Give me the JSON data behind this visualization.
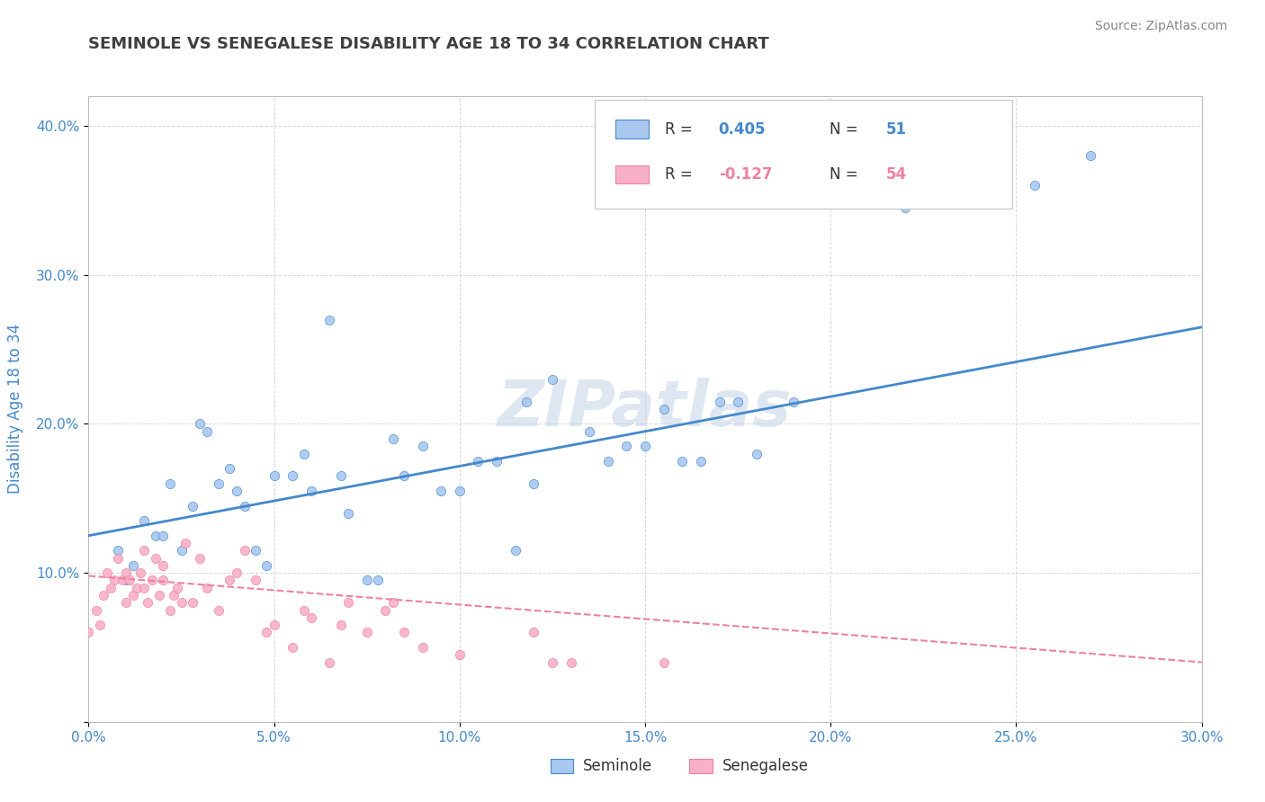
{
  "title": "SEMINOLE VS SENEGALESE DISABILITY AGE 18 TO 34 CORRELATION CHART",
  "source_text": "Source: ZipAtlas.com",
  "ylabel": "Disability Age 18 to 34",
  "xlim": [
    0.0,
    0.3
  ],
  "ylim": [
    0.0,
    0.42
  ],
  "xticks": [
    0.0,
    0.05,
    0.1,
    0.15,
    0.2,
    0.25,
    0.3
  ],
  "yticks": [
    0.0,
    0.1,
    0.2,
    0.3,
    0.4
  ],
  "xtick_labels": [
    "0.0%",
    "5.0%",
    "10.0%",
    "15.0%",
    "20.0%",
    "25.0%",
    "30.0%"
  ],
  "ytick_labels": [
    "",
    "10.0%",
    "20.0%",
    "30.0%",
    "40.0%"
  ],
  "seminole_color": "#a8c8f0",
  "senegalese_color": "#f8b0c8",
  "trend1_color": "#4488cc",
  "trend2_color": "#f080a0",
  "watermark": "ZIPatlas",
  "watermark_color": "#c8d8e8",
  "background_color": "#ffffff",
  "grid_color": "#cccccc",
  "title_color": "#404040",
  "tick_color": "#4488cc",
  "seminole_points": [
    [
      0.008,
      0.115
    ],
    [
      0.01,
      0.095
    ],
    [
      0.012,
      0.105
    ],
    [
      0.015,
      0.135
    ],
    [
      0.018,
      0.125
    ],
    [
      0.02,
      0.125
    ],
    [
      0.022,
      0.16
    ],
    [
      0.025,
      0.115
    ],
    [
      0.028,
      0.145
    ],
    [
      0.03,
      0.2
    ],
    [
      0.032,
      0.195
    ],
    [
      0.035,
      0.16
    ],
    [
      0.038,
      0.17
    ],
    [
      0.04,
      0.155
    ],
    [
      0.042,
      0.145
    ],
    [
      0.045,
      0.115
    ],
    [
      0.048,
      0.105
    ],
    [
      0.05,
      0.165
    ],
    [
      0.055,
      0.165
    ],
    [
      0.058,
      0.18
    ],
    [
      0.06,
      0.155
    ],
    [
      0.065,
      0.27
    ],
    [
      0.068,
      0.165
    ],
    [
      0.07,
      0.14
    ],
    [
      0.075,
      0.095
    ],
    [
      0.078,
      0.095
    ],
    [
      0.082,
      0.19
    ],
    [
      0.085,
      0.165
    ],
    [
      0.09,
      0.185
    ],
    [
      0.095,
      0.155
    ],
    [
      0.1,
      0.155
    ],
    [
      0.105,
      0.175
    ],
    [
      0.11,
      0.175
    ],
    [
      0.115,
      0.115
    ],
    [
      0.118,
      0.215
    ],
    [
      0.12,
      0.16
    ],
    [
      0.125,
      0.23
    ],
    [
      0.135,
      0.195
    ],
    [
      0.14,
      0.175
    ],
    [
      0.145,
      0.185
    ],
    [
      0.15,
      0.185
    ],
    [
      0.155,
      0.21
    ],
    [
      0.16,
      0.175
    ],
    [
      0.165,
      0.175
    ],
    [
      0.17,
      0.215
    ],
    [
      0.175,
      0.215
    ],
    [
      0.18,
      0.18
    ],
    [
      0.19,
      0.215
    ],
    [
      0.22,
      0.345
    ],
    [
      0.255,
      0.36
    ],
    [
      0.27,
      0.38
    ]
  ],
  "senegalese_points": [
    [
      0.0,
      0.06
    ],
    [
      0.002,
      0.075
    ],
    [
      0.003,
      0.065
    ],
    [
      0.004,
      0.085
    ],
    [
      0.005,
      0.1
    ],
    [
      0.006,
      0.09
    ],
    [
      0.007,
      0.095
    ],
    [
      0.008,
      0.11
    ],
    [
      0.009,
      0.095
    ],
    [
      0.01,
      0.08
    ],
    [
      0.01,
      0.1
    ],
    [
      0.011,
      0.095
    ],
    [
      0.012,
      0.085
    ],
    [
      0.013,
      0.09
    ],
    [
      0.014,
      0.1
    ],
    [
      0.015,
      0.115
    ],
    [
      0.015,
      0.09
    ],
    [
      0.016,
      0.08
    ],
    [
      0.017,
      0.095
    ],
    [
      0.018,
      0.11
    ],
    [
      0.019,
      0.085
    ],
    [
      0.02,
      0.095
    ],
    [
      0.02,
      0.105
    ],
    [
      0.022,
      0.075
    ],
    [
      0.023,
      0.085
    ],
    [
      0.024,
      0.09
    ],
    [
      0.025,
      0.08
    ],
    [
      0.026,
      0.12
    ],
    [
      0.028,
      0.08
    ],
    [
      0.03,
      0.11
    ],
    [
      0.032,
      0.09
    ],
    [
      0.035,
      0.075
    ],
    [
      0.038,
      0.095
    ],
    [
      0.04,
      0.1
    ],
    [
      0.042,
      0.115
    ],
    [
      0.045,
      0.095
    ],
    [
      0.048,
      0.06
    ],
    [
      0.05,
      0.065
    ],
    [
      0.055,
      0.05
    ],
    [
      0.058,
      0.075
    ],
    [
      0.06,
      0.07
    ],
    [
      0.065,
      0.04
    ],
    [
      0.068,
      0.065
    ],
    [
      0.07,
      0.08
    ],
    [
      0.075,
      0.06
    ],
    [
      0.08,
      0.075
    ],
    [
      0.082,
      0.08
    ],
    [
      0.085,
      0.06
    ],
    [
      0.09,
      0.05
    ],
    [
      0.1,
      0.045
    ],
    [
      0.12,
      0.06
    ],
    [
      0.125,
      0.04
    ],
    [
      0.13,
      0.04
    ],
    [
      0.155,
      0.04
    ]
  ],
  "trend1_x": [
    0.0,
    0.3
  ],
  "trend1_y": [
    0.125,
    0.265
  ],
  "trend2_x": [
    0.0,
    0.3
  ],
  "trend2_y": [
    0.098,
    0.04
  ]
}
